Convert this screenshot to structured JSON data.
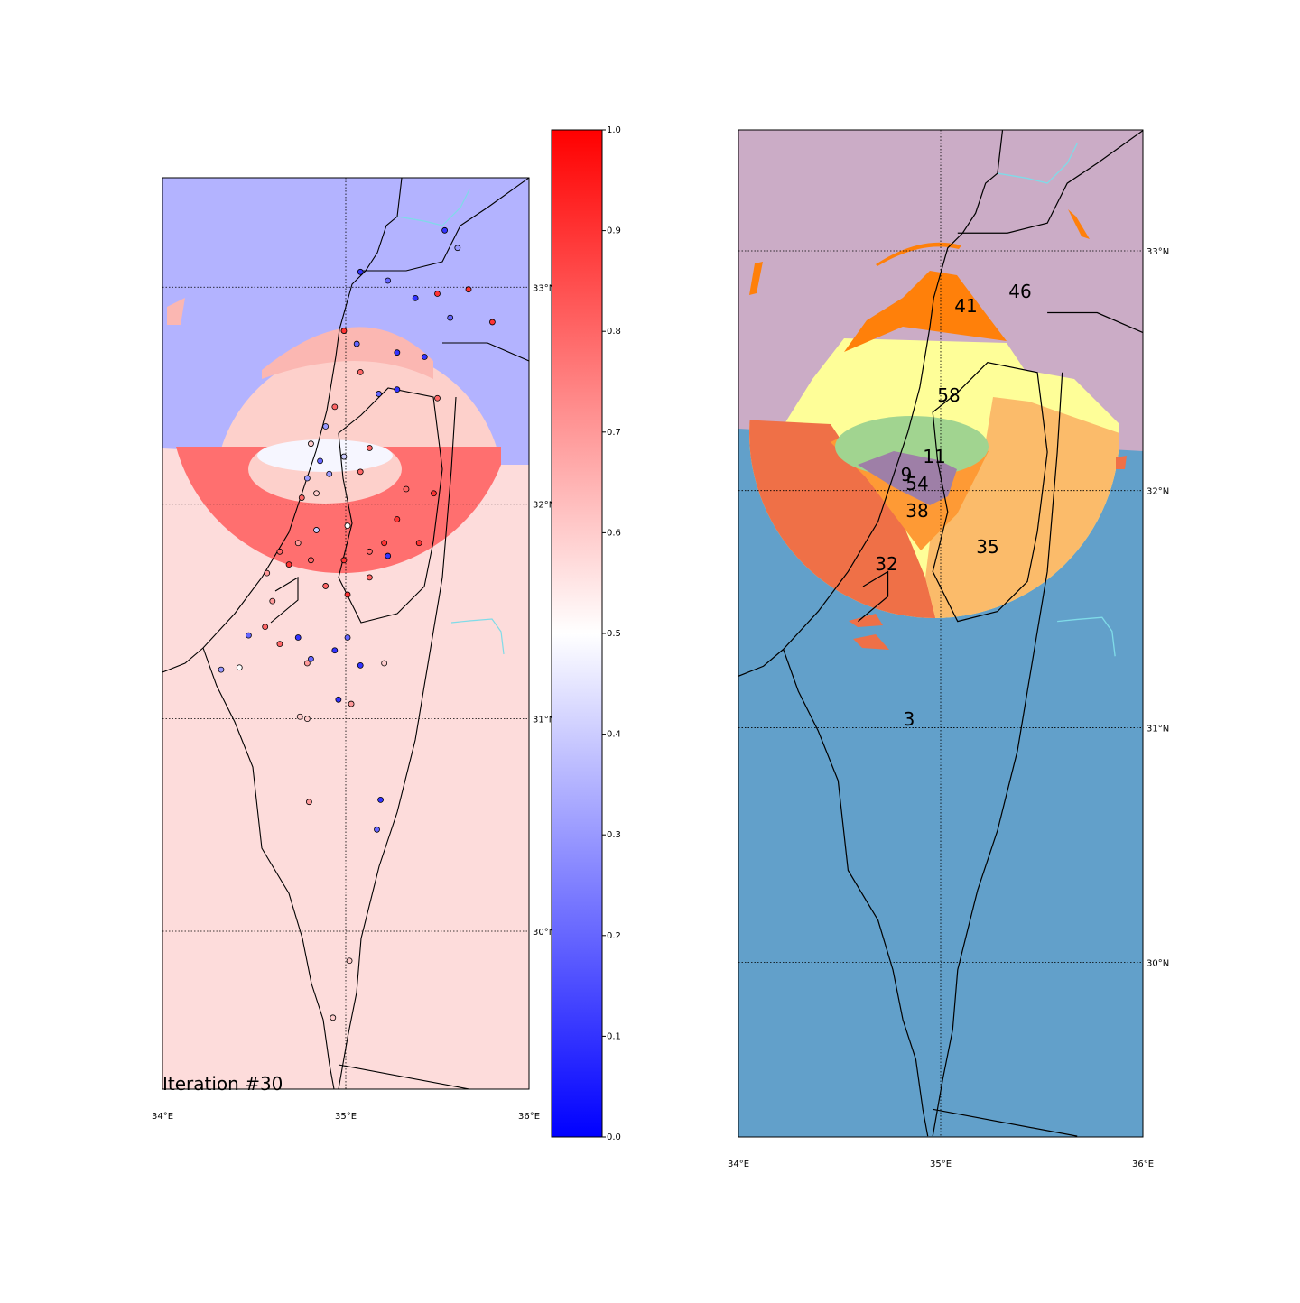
{
  "left_map": {
    "caption": "Iteration #30",
    "xlim": [
      34,
      36
    ],
    "ylim": [
      29.25,
      33.5
    ],
    "xticks": [
      {
        "value": 34,
        "label": "34°E"
      },
      {
        "value": 35,
        "label": "35°E"
      },
      {
        "value": 36,
        "label": "36°E"
      }
    ],
    "yticks": [
      {
        "value": 30,
        "label": "30°N"
      },
      {
        "value": 31,
        "label": "31°N"
      },
      {
        "value": 32,
        "label": "32°N"
      },
      {
        "value": 33,
        "label": "33°N"
      }
    ],
    "grid": true,
    "points": {
      "lon": [
        35.08,
        35.23,
        35.38,
        35.5,
        35.57,
        35.67,
        35.8,
        35.54,
        35.61,
        34.99,
        35.06,
        35.28,
        35.43,
        35.08,
        35.18,
        35.28,
        35.5,
        34.94,
        34.89,
        34.81,
        34.86,
        34.79,
        34.76,
        34.84,
        34.91,
        34.99,
        35.08,
        35.13,
        35.01,
        34.84,
        34.74,
        34.64,
        34.57,
        34.69,
        34.81,
        34.99,
        35.13,
        35.21,
        35.23,
        35.28,
        35.4,
        35.48,
        35.33,
        35.13,
        35.01,
        34.89,
        34.6,
        34.56,
        34.47,
        34.64,
        34.74,
        34.79,
        34.81,
        34.94,
        35.01,
        35.08,
        35.21,
        34.42,
        34.32,
        34.96,
        35.03,
        34.75,
        34.79,
        34.8,
        35.19,
        35.17,
        35.02,
        34.93
      ],
      "lat": [
        33.07,
        33.03,
        32.95,
        32.97,
        32.86,
        32.99,
        32.84,
        33.26,
        33.18,
        32.8,
        32.74,
        32.7,
        32.68,
        32.61,
        32.51,
        32.53,
        32.49,
        32.45,
        32.36,
        32.28,
        32.2,
        32.12,
        32.03,
        32.05,
        32.14,
        32.22,
        32.15,
        32.26,
        31.9,
        31.88,
        31.82,
        31.78,
        31.68,
        31.72,
        31.74,
        31.74,
        31.78,
        31.82,
        31.76,
        31.93,
        31.82,
        32.05,
        32.07,
        31.66,
        31.58,
        31.62,
        31.55,
        31.43,
        31.39,
        31.35,
        31.38,
        31.26,
        31.28,
        31.32,
        31.38,
        31.25,
        31.26,
        31.24,
        31.23,
        31.09,
        31.07,
        31.01,
        31.0,
        30.61,
        30.62,
        30.48,
        29.86,
        29.59
      ],
      "values": [
        0.1,
        0.2,
        0.1,
        0.9,
        0.2,
        0.9,
        0.9,
        0.1,
        0.3,
        0.9,
        0.2,
        0.1,
        0.1,
        0.8,
        0.2,
        0.1,
        0.8,
        0.8,
        0.3,
        0.6,
        0.2,
        0.3,
        0.8,
        0.6,
        0.3,
        0.4,
        0.8,
        0.8,
        0.5,
        0.4,
        0.7,
        0.8,
        0.7,
        0.9,
        0.8,
        0.9,
        0.8,
        0.9,
        0.1,
        0.9,
        0.9,
        0.9,
        0.8,
        0.8,
        0.9,
        0.8,
        0.7,
        0.8,
        0.2,
        0.8,
        0.1,
        0.7,
        0.2,
        0.1,
        0.2,
        0.1,
        0.6,
        0.5,
        0.3,
        0.1,
        0.7,
        0.6,
        0.6,
        0.7,
        0.1,
        0.2,
        0.6,
        0.6
      ]
    }
  },
  "colorbar": {
    "lim": [
      0,
      1
    ],
    "ticks": [
      {
        "value": 0,
        "label": "0.0"
      },
      {
        "value": 0.1,
        "label": "0.1"
      },
      {
        "value": 0.2,
        "label": "0.2"
      },
      {
        "value": 0.3,
        "label": "0.3"
      },
      {
        "value": 0.4,
        "label": "0.4"
      },
      {
        "value": 0.5,
        "label": "0.5"
      },
      {
        "value": 0.6,
        "label": "0.6"
      },
      {
        "value": 0.7,
        "label": "0.7"
      },
      {
        "value": 0.8,
        "label": "0.8"
      },
      {
        "value": 0.9,
        "label": "0.9"
      },
      {
        "value": 1,
        "label": "1.0"
      }
    ]
  },
  "right_map": {
    "xlim": [
      34,
      36
    ],
    "ylim": [
      29.25,
      33.5
    ],
    "xticks": [
      {
        "value": 34,
        "label": "34°E"
      },
      {
        "value": 35,
        "label": "35°E"
      },
      {
        "value": 36,
        "label": "36°E"
      }
    ],
    "yticks": [
      {
        "value": 30,
        "label": "30°N"
      },
      {
        "value": 31,
        "label": "31°N"
      },
      {
        "value": 32,
        "label": "32°N"
      },
      {
        "value": 33,
        "label": "33°N"
      }
    ],
    "grid": true,
    "cluster_labels": [
      41,
      46,
      58,
      11,
      9,
      54,
      38,
      35,
      32,
      3
    ]
  }
}
